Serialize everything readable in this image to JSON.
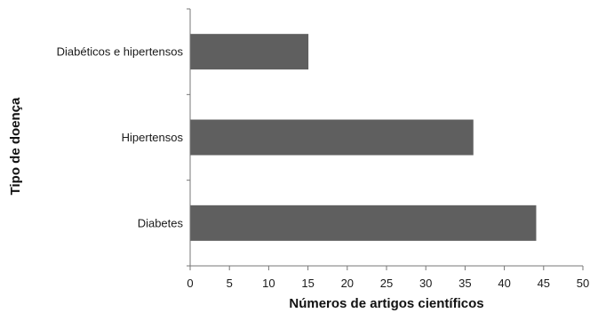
{
  "chart_data": {
    "type": "bar",
    "orientation": "horizontal",
    "categories": [
      "Diabéticos e hipertensos",
      "Hipertensos",
      "Diabetes"
    ],
    "values": [
      15,
      36,
      44
    ],
    "xlabel": "Números de artigos científicos",
    "ylabel": "Tipo de doença",
    "xlim": [
      0,
      50
    ],
    "xticks": [
      "0",
      "5",
      "10",
      "15",
      "20",
      "25",
      "30",
      "35",
      "40",
      "45",
      "50"
    ],
    "grid": false,
    "bar_color": "#5f5f5f"
  }
}
